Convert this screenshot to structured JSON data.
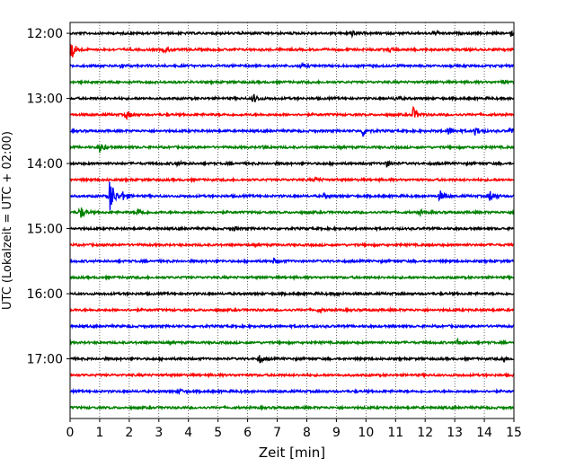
{
  "chart_data": {
    "type": "line",
    "title": "",
    "xlabel": "Zeit  [min]",
    "ylabel": "UTC (Lokalzeit = UTC + 02:00)",
    "xlim": [
      0,
      15
    ],
    "x_ticks": [
      0,
      1,
      2,
      3,
      4,
      5,
      6,
      7,
      8,
      9,
      10,
      11,
      12,
      13,
      14,
      15
    ],
    "x_tick_labels": [
      "0",
      "1",
      "2",
      "3",
      "4",
      "5",
      "6",
      "7",
      "8",
      "9",
      "10",
      "11",
      "12",
      "13",
      "14",
      "15"
    ],
    "y_tick_labels": [
      "12:00",
      "13:00",
      "14:00",
      "15:00",
      "16:00",
      "17:00"
    ],
    "y_tick_minutes": [
      0,
      60,
      120,
      180,
      240,
      300
    ],
    "ylim_minutes": [
      -10,
      355
    ],
    "y_inverted": true,
    "trace_interval_min": 15,
    "grid": "vertical-dotted",
    "legend": "none",
    "colors": [
      "#000000",
      "#ff0000",
      "#0000ff",
      "#008000"
    ],
    "series": [
      {
        "start": "12:00",
        "color": "#000000",
        "events": [
          {
            "t": 9.5,
            "a": 0.45
          },
          {
            "t": 12.3,
            "a": 0.35
          },
          {
            "t": 14.9,
            "a": 0.4
          }
        ]
      },
      {
        "start": "12:15",
        "color": "#ff0000",
        "events": [
          {
            "t": 0.05,
            "a": 1.6
          },
          {
            "t": 3.2,
            "a": 0.5
          },
          {
            "t": 10.8,
            "a": 0.3
          }
        ]
      },
      {
        "start": "12:30",
        "color": "#0000ff",
        "events": [
          {
            "t": 1.7,
            "a": 0.3
          },
          {
            "t": 7.8,
            "a": 0.3
          }
        ]
      },
      {
        "start": "12:45",
        "color": "#008000",
        "events": [
          {
            "t": 14.6,
            "a": 0.3
          }
        ]
      },
      {
        "start": "13:00",
        "color": "#000000",
        "events": [
          {
            "t": 6.2,
            "a": 0.7
          },
          {
            "t": 11.0,
            "a": 0.3
          }
        ]
      },
      {
        "start": "13:15",
        "color": "#ff0000",
        "events": [
          {
            "t": 1.9,
            "a": 0.6
          },
          {
            "t": 11.6,
            "a": 1.0
          }
        ]
      },
      {
        "start": "13:30",
        "color": "#0000ff",
        "events": [
          {
            "t": 9.9,
            "a": 0.8
          },
          {
            "t": 12.8,
            "a": 0.6
          },
          {
            "t": 13.7,
            "a": 0.7
          },
          {
            "t": 14.9,
            "a": 0.6
          }
        ]
      },
      {
        "start": "13:45",
        "color": "#008000",
        "events": [
          {
            "t": 1.0,
            "a": 0.8
          },
          {
            "t": 6.5,
            "a": 0.3
          }
        ]
      },
      {
        "start": "14:00",
        "color": "#000000",
        "events": [
          {
            "t": 3.6,
            "a": 0.35
          },
          {
            "t": 10.7,
            "a": 0.45
          }
        ]
      },
      {
        "start": "14:15",
        "color": "#ff0000",
        "events": [
          {
            "t": 8.3,
            "a": 0.35
          }
        ]
      },
      {
        "start": "14:30",
        "color": "#0000ff",
        "events": [
          {
            "t": 1.35,
            "a": 3.0
          },
          {
            "t": 1.8,
            "a": 0.7
          },
          {
            "t": 8.6,
            "a": 0.4
          },
          {
            "t": 12.5,
            "a": 0.8
          },
          {
            "t": 14.2,
            "a": 0.9
          }
        ]
      },
      {
        "start": "14:45",
        "color": "#008000",
        "events": [
          {
            "t": 0.35,
            "a": 1.0
          },
          {
            "t": 2.3,
            "a": 0.6
          },
          {
            "t": 11.8,
            "a": 0.35
          }
        ]
      },
      {
        "start": "15:00",
        "color": "#000000",
        "events": [
          {
            "t": 5.5,
            "a": 0.3
          }
        ]
      },
      {
        "start": "15:15",
        "color": "#ff0000",
        "events": []
      },
      {
        "start": "15:30",
        "color": "#0000ff",
        "events": [
          {
            "t": 6.9,
            "a": 0.4
          }
        ]
      },
      {
        "start": "15:45",
        "color": "#008000",
        "events": []
      },
      {
        "start": "16:00",
        "color": "#000000",
        "events": [
          {
            "t": 9.0,
            "a": 0.3
          }
        ]
      },
      {
        "start": "16:15",
        "color": "#ff0000",
        "events": [
          {
            "t": 8.4,
            "a": 0.3
          }
        ]
      },
      {
        "start": "16:30",
        "color": "#0000ff",
        "events": []
      },
      {
        "start": "16:45",
        "color": "#008000",
        "events": [
          {
            "t": 13.1,
            "a": 0.5
          }
        ]
      },
      {
        "start": "17:00",
        "color": "#000000",
        "events": [
          {
            "t": 6.4,
            "a": 0.6
          },
          {
            "t": 14.6,
            "a": 0.5
          }
        ]
      },
      {
        "start": "17:15",
        "color": "#ff0000",
        "events": []
      },
      {
        "start": "17:30",
        "color": "#0000ff",
        "events": [
          {
            "t": 3.7,
            "a": 0.3
          }
        ]
      },
      {
        "start": "17:45",
        "color": "#008000",
        "events": []
      }
    ]
  }
}
